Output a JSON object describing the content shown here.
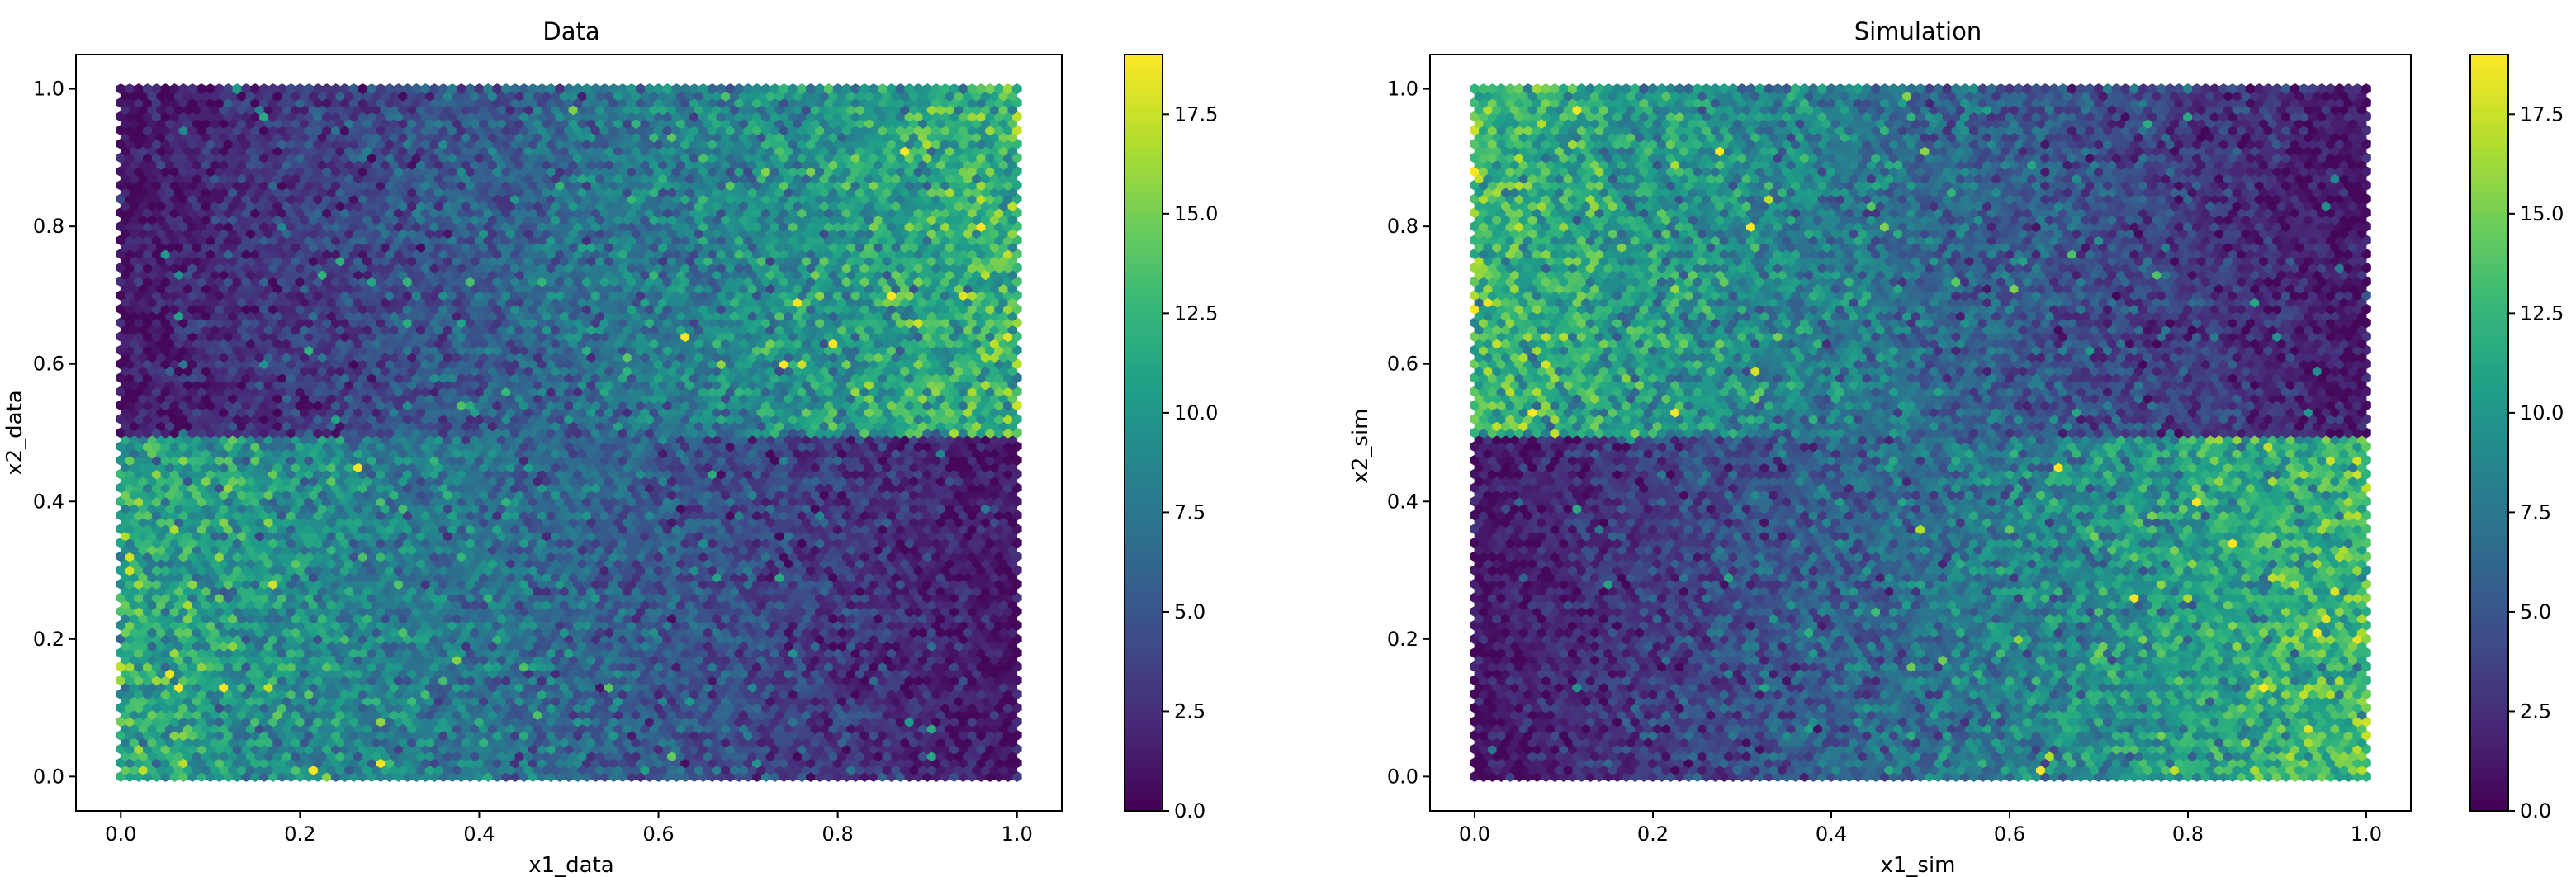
{
  "chart_data": [
    {
      "type": "heatmap",
      "subtype": "hexbin",
      "title": "Data",
      "xlabel": "x1_data",
      "ylabel": "x2_data",
      "xlim": [
        -0.05,
        1.05
      ],
      "ylim": [
        -0.05,
        1.05
      ],
      "xticks": [
        "0.0",
        "0.2",
        "0.4",
        "0.6",
        "0.8",
        "1.0"
      ],
      "yticks": [
        "0.0",
        "0.2",
        "0.4",
        "0.6",
        "0.8",
        "1.0"
      ],
      "colorbar": {
        "min": 0,
        "max": 19,
        "ticks": [
          "0.0",
          "2.5",
          "5.0",
          "7.5",
          "10.0",
          "12.5",
          "15.0",
          "17.5"
        ],
        "colormap": "viridis"
      },
      "density_pattern": {
        "y_split": 0.5,
        "lower_half": "high density (~10-12) at x1=0, decreasing to ~1 at x1=1",
        "upper_half": "low density (~1) at x1=0, increasing to ~12 at x1=1"
      }
    },
    {
      "type": "heatmap",
      "subtype": "hexbin",
      "title": "Simulation",
      "xlabel": "x1_sim",
      "ylabel": "x2_sim",
      "xlim": [
        -0.05,
        1.05
      ],
      "ylim": [
        -0.05,
        1.05
      ],
      "xticks": [
        "0.0",
        "0.2",
        "0.4",
        "0.6",
        "0.8",
        "1.0"
      ],
      "yticks": [
        "0.0",
        "0.2",
        "0.4",
        "0.6",
        "0.8",
        "1.0"
      ],
      "colorbar": {
        "min": 0,
        "max": 19,
        "ticks": [
          "0.0",
          "2.5",
          "5.0",
          "7.5",
          "10.0",
          "12.5",
          "15.0",
          "17.5"
        ],
        "colormap": "viridis"
      },
      "density_pattern": {
        "y_split": 0.5,
        "lower_half": "low density (~1) at x1=0, increasing to ~12 at x1=1",
        "upper_half": "high density (~12) at x1=0, decreasing to ~1 at x1=1"
      }
    }
  ]
}
